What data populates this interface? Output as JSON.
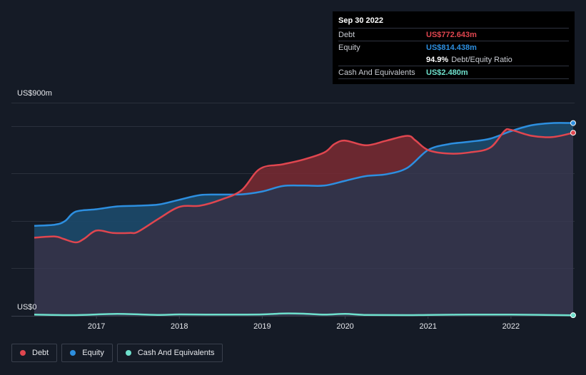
{
  "tooltip": {
    "date": "Sep 30 2022",
    "debt_label": "Debt",
    "debt_value": "US$772.643m",
    "equity_label": "Equity",
    "equity_value": "US$814.438m",
    "ratio_value": "94.9%",
    "ratio_label": "Debt/Equity Ratio",
    "cash_label": "Cash And Equivalents",
    "cash_value": "US$2.480m"
  },
  "colors": {
    "debt": "#e0464f",
    "equity": "#2d8fe0",
    "cash": "#6ee0cc",
    "debt_fill": "#7a2a33",
    "equity_fill": "#1c4a6b",
    "area_fill": "#3a3a52"
  },
  "legend": [
    {
      "label": "Debt",
      "color": "#e0464f"
    },
    {
      "label": "Equity",
      "color": "#2d8fe0"
    },
    {
      "label": "Cash And Equivalents",
      "color": "#6ee0cc"
    }
  ],
  "chart_data": {
    "type": "area",
    "ylabel_top": "US$900m",
    "ylabel_bottom": "US$0",
    "ylim": [
      0,
      900
    ],
    "x_ticks": [
      "2017",
      "2018",
      "2019",
      "2020",
      "2021",
      "2022"
    ],
    "x_tick_values": [
      2017.0,
      2018.0,
      2019.0,
      2020.0,
      2021.0,
      2022.0
    ],
    "xlim": [
      2016.25,
      2022.75
    ],
    "grid": true,
    "series": [
      {
        "name": "Debt",
        "x": [
          2016.25,
          2016.5,
          2016.6,
          2016.75,
          2016.85,
          2017.0,
          2017.2,
          2017.4,
          2017.5,
          2017.75,
          2018.0,
          2018.25,
          2018.5,
          2018.75,
          2018.97,
          2019.25,
          2019.5,
          2019.75,
          2019.87,
          2020.0,
          2020.25,
          2020.5,
          2020.75,
          2020.85,
          2021.0,
          2021.25,
          2021.5,
          2021.75,
          2021.92,
          2022.0,
          2022.25,
          2022.5,
          2022.75
        ],
        "values": [
          330,
          335,
          325,
          310,
          325,
          360,
          350,
          350,
          355,
          410,
          460,
          465,
          490,
          530,
          620,
          640,
          660,
          690,
          725,
          740,
          720,
          740,
          760,
          740,
          700,
          685,
          690,
          710,
          780,
          785,
          760,
          755,
          773
        ]
      },
      {
        "name": "Equity",
        "x": [
          2016.25,
          2016.5,
          2016.62,
          2016.75,
          2017.0,
          2017.25,
          2017.5,
          2017.75,
          2018.0,
          2018.25,
          2018.5,
          2018.75,
          2019.0,
          2019.25,
          2019.5,
          2019.75,
          2020.0,
          2020.25,
          2020.5,
          2020.75,
          2021.0,
          2021.25,
          2021.5,
          2021.75,
          2022.0,
          2022.25,
          2022.5,
          2022.75
        ],
        "values": [
          380,
          385,
          400,
          440,
          450,
          462,
          465,
          470,
          490,
          510,
          512,
          513,
          525,
          548,
          550,
          550,
          570,
          590,
          598,
          625,
          700,
          725,
          735,
          748,
          780,
          805,
          814,
          814
        ]
      },
      {
        "name": "Cash And Equivalents",
        "x": [
          2016.25,
          2016.75,
          2017.25,
          2017.75,
          2018.0,
          2018.5,
          2019.0,
          2019.25,
          2019.5,
          2019.75,
          2020.0,
          2020.25,
          2020.75,
          2021.0,
          2021.5,
          2022.0,
          2022.75
        ],
        "values": [
          5,
          3,
          8,
          4,
          6,
          5,
          6,
          10,
          9,
          5,
          8,
          4,
          3,
          4,
          5,
          5,
          2.48
        ]
      }
    ]
  }
}
